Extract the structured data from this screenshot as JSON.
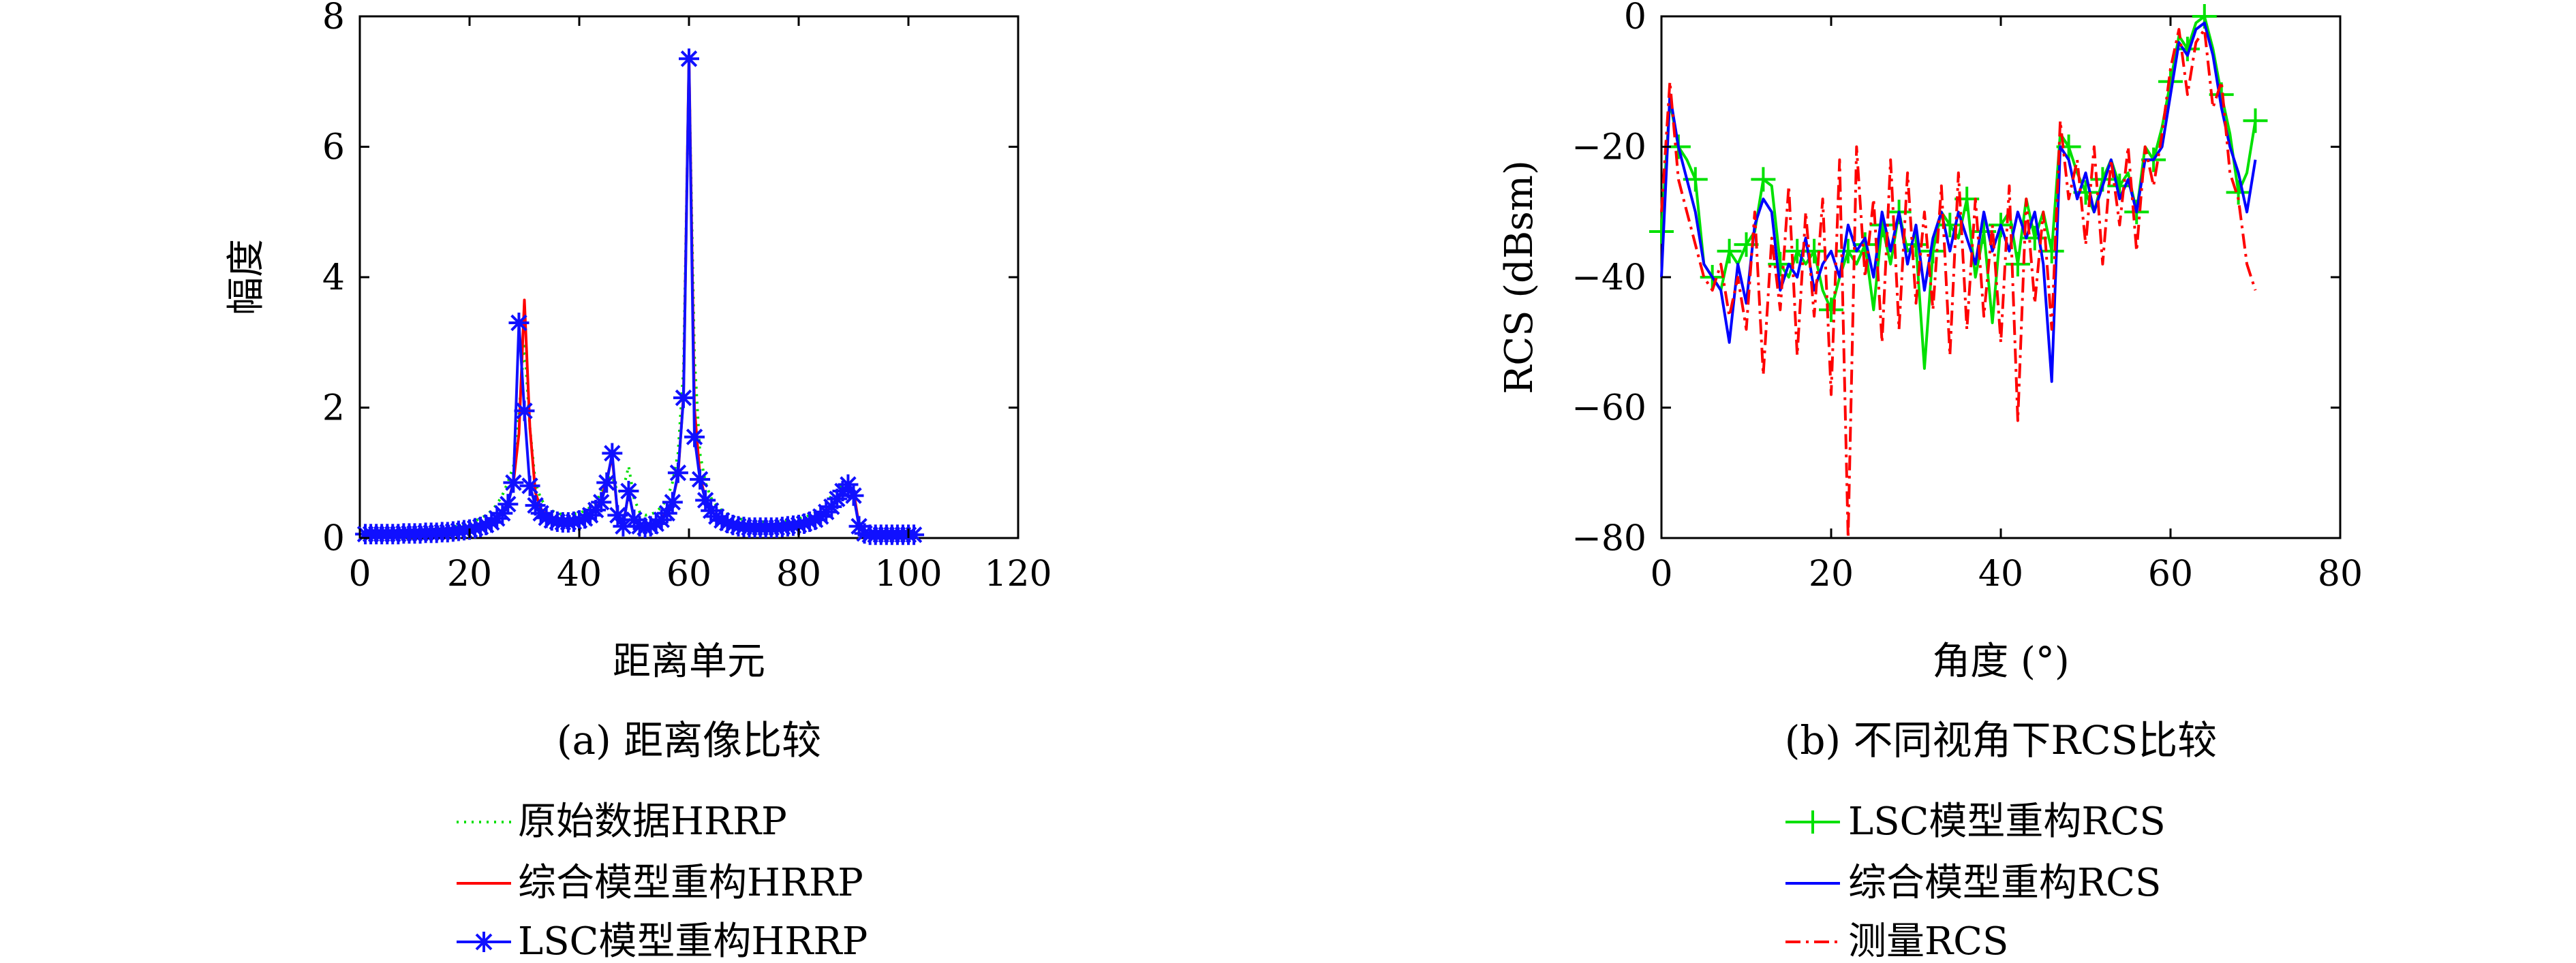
{
  "chart_data": [
    {
      "type": "line",
      "caption": "(a) 距离像比较",
      "xlabel": "距离单元",
      "ylabel": "幅度",
      "xlim": [
        0,
        120
      ],
      "ylim": [
        0,
        8
      ],
      "xticks": [
        0,
        20,
        40,
        60,
        80,
        100,
        120
      ],
      "yticks": [
        0,
        2,
        4,
        6,
        8
      ],
      "grid": false,
      "legend_position": "below",
      "series": [
        {
          "name": "原始数据HRRP",
          "color": "#00e000",
          "style": "dotted",
          "marker": "none"
        },
        {
          "name": "综合模型重构HRRP",
          "color": "#ff0000",
          "style": "solid",
          "marker": "none"
        },
        {
          "name": "LSC模型重构HRRP",
          "color": "#1010ff",
          "style": "solid",
          "marker": "asterisk"
        }
      ],
      "x": [
        1,
        2,
        3,
        4,
        5,
        6,
        7,
        8,
        9,
        10,
        11,
        12,
        13,
        14,
        15,
        16,
        17,
        18,
        19,
        20,
        21,
        22,
        23,
        24,
        25,
        26,
        27,
        28,
        29,
        30,
        31,
        32,
        33,
        34,
        35,
        36,
        37,
        38,
        39,
        40,
        41,
        42,
        43,
        44,
        45,
        46,
        47,
        48,
        49,
        50,
        51,
        52,
        53,
        54,
        55,
        56,
        57,
        58,
        59,
        60,
        61,
        62,
        63,
        64,
        65,
        66,
        67,
        68,
        69,
        70,
        71,
        72,
        73,
        74,
        75,
        76,
        77,
        78,
        79,
        80,
        81,
        82,
        83,
        84,
        85,
        86,
        87,
        88,
        89,
        90,
        91,
        92,
        93,
        94,
        95,
        96,
        97,
        98,
        99,
        100,
        101
      ],
      "values": {
        "原始数据HRRP": [
          0.08,
          0.08,
          0.09,
          0.09,
          0.09,
          0.1,
          0.1,
          0.1,
          0.11,
          0.11,
          0.12,
          0.12,
          0.13,
          0.14,
          0.15,
          0.16,
          0.17,
          0.19,
          0.21,
          0.23,
          0.26,
          0.3,
          0.35,
          0.42,
          0.52,
          0.66,
          0.86,
          1.1,
          1.9,
          3.0,
          1.7,
          0.85,
          0.6,
          0.48,
          0.42,
          0.38,
          0.36,
          0.36,
          0.37,
          0.38,
          0.42,
          0.47,
          0.55,
          0.7,
          0.9,
          0.95,
          0.7,
          0.75,
          1.1,
          0.6,
          0.4,
          0.35,
          0.36,
          0.4,
          0.48,
          0.6,
          0.85,
          1.3,
          2.6,
          7.2,
          2.8,
          1.3,
          0.85,
          0.62,
          0.5,
          0.42,
          0.37,
          0.33,
          0.3,
          0.28,
          0.27,
          0.26,
          0.25,
          0.25,
          0.25,
          0.25,
          0.26,
          0.27,
          0.28,
          0.3,
          0.32,
          0.35,
          0.39,
          0.45,
          0.53,
          0.65,
          0.75,
          0.8,
          0.75,
          0.6,
          0.25,
          0.12,
          0.08,
          0.07,
          0.06,
          0.06,
          0.06,
          0.06,
          0.06,
          0.06,
          0.06
        ],
        "综合模型重构HRRP": [
          0.06,
          0.06,
          0.06,
          0.06,
          0.06,
          0.06,
          0.07,
          0.07,
          0.07,
          0.07,
          0.08,
          0.08,
          0.08,
          0.09,
          0.09,
          0.1,
          0.11,
          0.12,
          0.13,
          0.14,
          0.16,
          0.18,
          0.21,
          0.25,
          0.31,
          0.4,
          0.55,
          0.85,
          1.6,
          3.65,
          1.7,
          0.7,
          0.45,
          0.35,
          0.3,
          0.27,
          0.26,
          0.26,
          0.27,
          0.29,
          0.32,
          0.37,
          0.45,
          0.58,
          0.9,
          1.25,
          0.35,
          0.2,
          0.7,
          0.3,
          0.2,
          0.18,
          0.2,
          0.24,
          0.3,
          0.4,
          0.58,
          0.95,
          2.2,
          7.4,
          2.0,
          0.95,
          0.6,
          0.43,
          0.33,
          0.27,
          0.23,
          0.2,
          0.18,
          0.17,
          0.16,
          0.16,
          0.16,
          0.16,
          0.16,
          0.16,
          0.17,
          0.18,
          0.19,
          0.2,
          0.22,
          0.25,
          0.29,
          0.34,
          0.4,
          0.5,
          0.58,
          0.7,
          0.82,
          0.72,
          0.2,
          0.08,
          0.05,
          0.05,
          0.05,
          0.05,
          0.05,
          0.05,
          0.05,
          0.05,
          0.05
        ],
        "LSC模型重构HRRP": [
          0.06,
          0.06,
          0.06,
          0.06,
          0.06,
          0.06,
          0.06,
          0.07,
          0.07,
          0.07,
          0.07,
          0.08,
          0.08,
          0.08,
          0.09,
          0.09,
          0.1,
          0.11,
          0.12,
          0.13,
          0.15,
          0.17,
          0.2,
          0.24,
          0.3,
          0.38,
          0.52,
          0.85,
          3.3,
          1.95,
          0.8,
          0.5,
          0.38,
          0.31,
          0.27,
          0.25,
          0.24,
          0.24,
          0.25,
          0.27,
          0.3,
          0.35,
          0.43,
          0.55,
          0.85,
          1.3,
          0.35,
          0.18,
          0.72,
          0.28,
          0.18,
          0.16,
          0.18,
          0.22,
          0.28,
          0.38,
          0.55,
          1.0,
          2.15,
          7.35,
          1.55,
          0.9,
          0.58,
          0.42,
          0.33,
          0.27,
          0.23,
          0.2,
          0.18,
          0.17,
          0.16,
          0.16,
          0.16,
          0.16,
          0.16,
          0.16,
          0.17,
          0.18,
          0.19,
          0.2,
          0.22,
          0.25,
          0.28,
          0.33,
          0.4,
          0.48,
          0.6,
          0.72,
          0.82,
          0.65,
          0.18,
          0.07,
          0.05,
          0.05,
          0.05,
          0.05,
          0.05,
          0.05,
          0.05,
          0.05,
          0.05
        ]
      }
    },
    {
      "type": "line",
      "caption": "(b) 不同视角下RCS比较",
      "xlabel": "角度 (°)",
      "ylabel": "RCS (dBsm)",
      "xlim": [
        0,
        80
      ],
      "ylim": [
        -80,
        0
      ],
      "xticks": [
        0,
        20,
        40,
        60,
        80
      ],
      "yticks": [
        0,
        -20,
        -40,
        -60,
        -80
      ],
      "grid": false,
      "legend_position": "below",
      "series": [
        {
          "name": "LSC模型重构RCS",
          "color": "#00e000",
          "style": "solid",
          "marker": "plus"
        },
        {
          "name": "综合模型重构RCS",
          "color": "#0000ff",
          "style": "solid",
          "marker": "none"
        },
        {
          "name": "测量RCS",
          "color": "#ff0000",
          "style": "dashdot",
          "marker": "none"
        }
      ],
      "x": [
        0,
        1,
        2,
        3,
        4,
        5,
        6,
        7,
        8,
        9,
        10,
        11,
        12,
        13,
        14,
        15,
        16,
        17,
        18,
        19,
        20,
        21,
        22,
        23,
        24,
        25,
        26,
        27,
        28,
        29,
        30,
        31,
        32,
        33,
        34,
        35,
        36,
        37,
        38,
        39,
        40,
        41,
        42,
        43,
        44,
        45,
        46,
        47,
        48,
        49,
        50,
        51,
        52,
        53,
        54,
        55,
        56,
        57,
        58,
        59,
        60,
        61,
        62,
        63,
        64,
        65,
        66,
        67,
        68,
        69,
        70
      ],
      "values": {
        "LSC模型重构RCS": [
          -33,
          -13,
          -20,
          -22,
          -25,
          -38,
          -40,
          -42,
          -36,
          -38,
          -35,
          -33,
          -25,
          -26,
          -38,
          -40,
          -36,
          -38,
          -36,
          -42,
          -45,
          -40,
          -36,
          -38,
          -35,
          -45,
          -32,
          -38,
          -30,
          -36,
          -35,
          -54,
          -36,
          -30,
          -32,
          -34,
          -28,
          -40,
          -33,
          -47,
          -32,
          -30,
          -38,
          -28,
          -34,
          -30,
          -36,
          -18,
          -20,
          -24,
          -27,
          -30,
          -25,
          -22,
          -26,
          -24,
          -30,
          -20,
          -22,
          -17,
          -10,
          -3,
          -5,
          -1,
          0,
          -5,
          -12,
          -18,
          -27,
          -24,
          -16
        ],
        "综合模型重构RCS": [
          -40,
          -12,
          -20,
          -25,
          -30,
          -38,
          -40,
          -42,
          -50,
          -38,
          -44,
          -32,
          -28,
          -30,
          -42,
          -38,
          -40,
          -34,
          -42,
          -38,
          -36,
          -40,
          -32,
          -36,
          -34,
          -40,
          -30,
          -36,
          -30,
          -38,
          -32,
          -42,
          -34,
          -30,
          -36,
          -30,
          -34,
          -38,
          -30,
          -36,
          -32,
          -36,
          -30,
          -34,
          -30,
          -38,
          -56,
          -20,
          -22,
          -28,
          -24,
          -30,
          -26,
          -22,
          -28,
          -25,
          -30,
          -22,
          -22,
          -20,
          -12,
          -4,
          -6,
          -2,
          -1,
          -6,
          -14,
          -20,
          -24,
          -30,
          -22
        ],
        "测量RCS": [
          -30,
          -10,
          -25,
          -30,
          -35,
          -40,
          -42,
          -38,
          -46,
          -40,
          -48,
          -30,
          -55,
          -34,
          -45,
          -26,
          -52,
          -30,
          -46,
          -28,
          -58,
          -22,
          -80,
          -20,
          -40,
          -28,
          -50,
          -22,
          -48,
          -24,
          -44,
          -30,
          -45,
          -26,
          -52,
          -24,
          -48,
          -28,
          -46,
          -32,
          -50,
          -26,
          -62,
          -28,
          -44,
          -30,
          -48,
          -16,
          -28,
          -22,
          -35,
          -20,
          -38,
          -22,
          -32,
          -20,
          -36,
          -20,
          -26,
          -18,
          -8,
          -2,
          -12,
          -4,
          -2,
          -14,
          -10,
          -24,
          -28,
          -38,
          -42
        ]
      }
    }
  ]
}
